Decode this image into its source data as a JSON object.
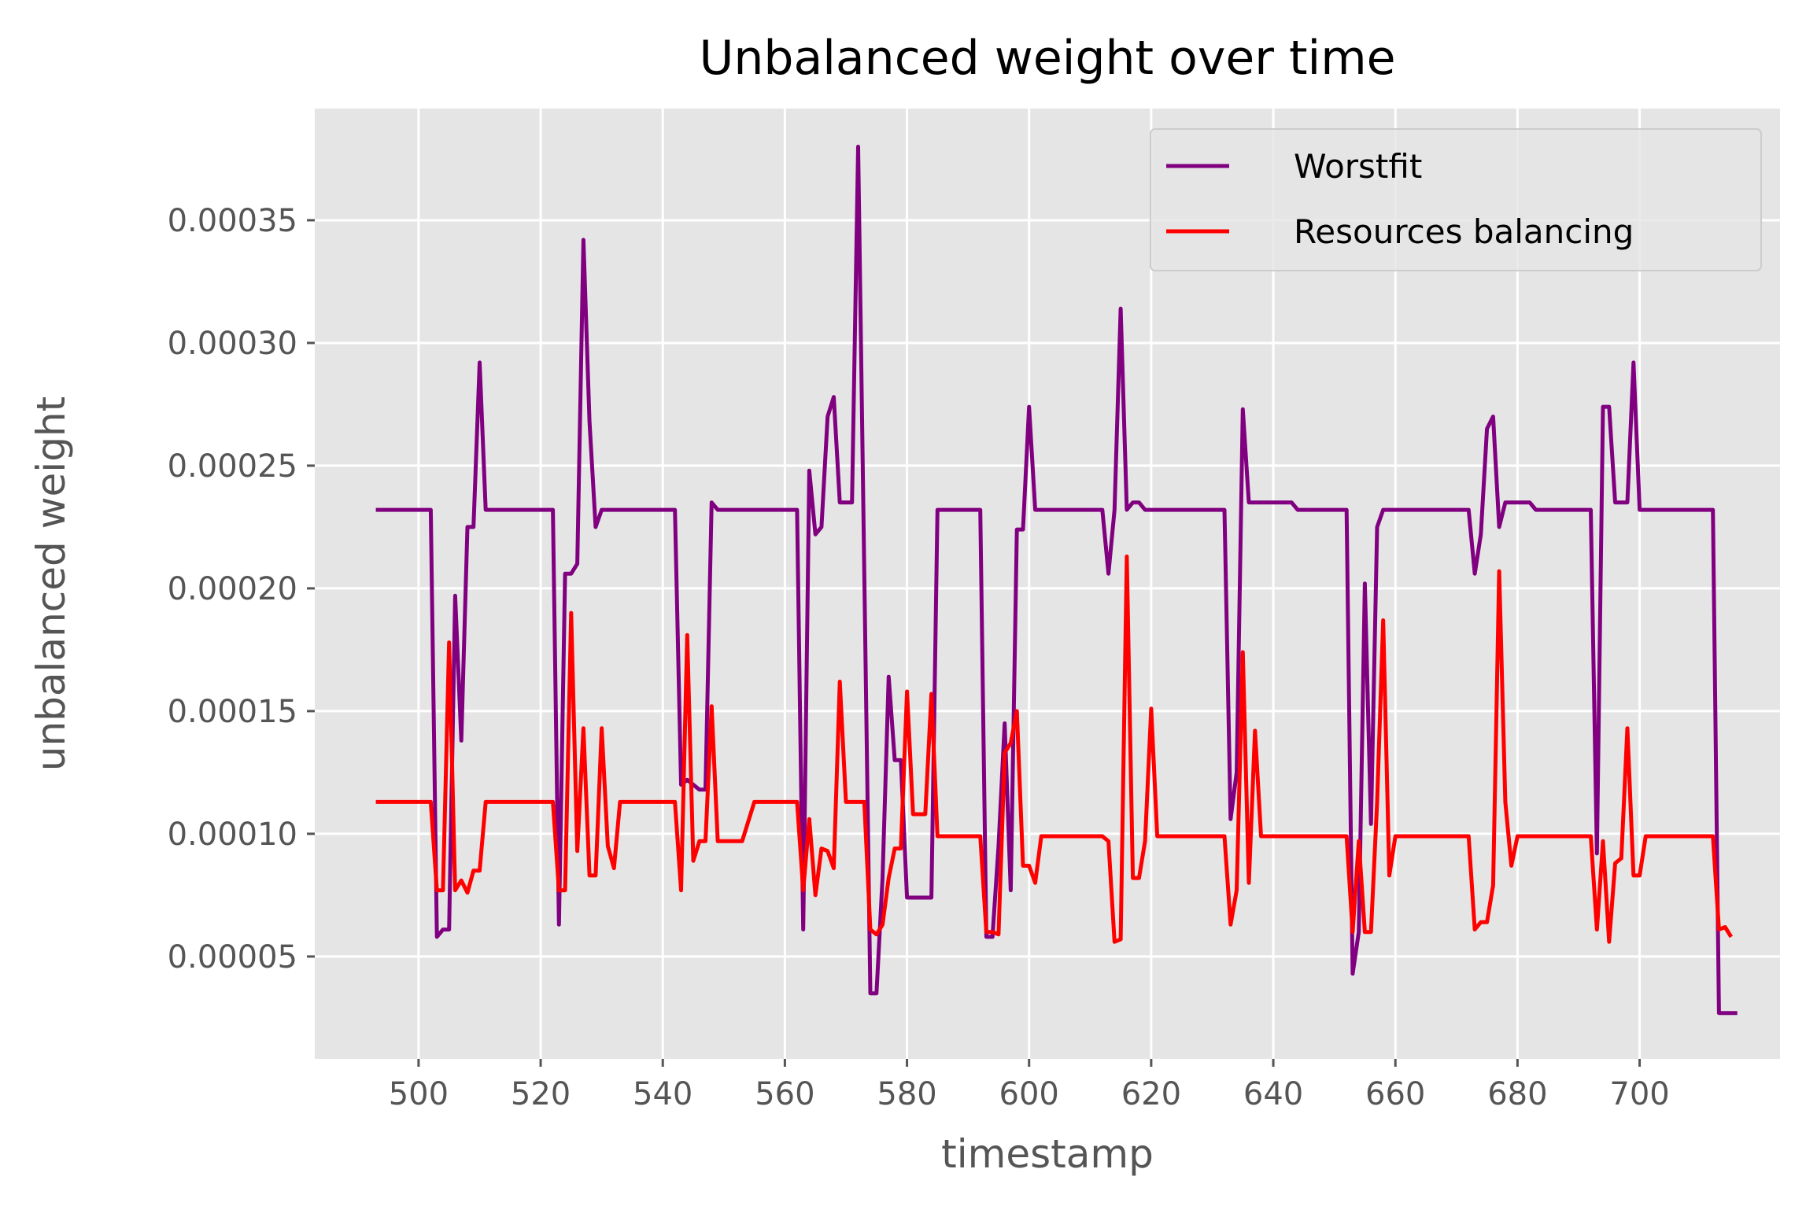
{
  "chart_data": {
    "type": "line",
    "title": "Unbalanced weight over time",
    "xlabel": "timestamp",
    "ylabel": "unbalanced weight",
    "xlim": [
      483,
      723
    ],
    "ylim": [
      8.3e-06,
      0.0003955
    ],
    "xticks": [
      500,
      520,
      540,
      560,
      580,
      600,
      620,
      640,
      660,
      680,
      700
    ],
    "xtick_labels": [
      "500",
      "520",
      "540",
      "560",
      "580",
      "600",
      "620",
      "640",
      "660",
      "680",
      "700"
    ],
    "yticks": [
      5e-05,
      0.0001,
      0.00015,
      0.0002,
      0.00025,
      0.0003,
      0.00035
    ],
    "ytick_labels": [
      "0.00005",
      "0.00010",
      "0.00015",
      "0.00020",
      "0.00025",
      "0.00030",
      "0.00035"
    ],
    "grid": true,
    "legend_position": "top-right",
    "style": {
      "plot_background": "#e5e5e5",
      "grid_color": "#ffffff"
    },
    "series": [
      {
        "name": "Worstfit",
        "color": "#800080",
        "points": [
          [
            493,
            0.000232
          ],
          [
            502,
            0.000232
          ],
          [
            503,
            5.8e-05
          ],
          [
            504,
            6.1e-05
          ],
          [
            505,
            6.1e-05
          ],
          [
            506,
            0.000197
          ],
          [
            507,
            0.000138
          ],
          [
            508,
            0.000225
          ],
          [
            509,
            0.000225
          ],
          [
            510,
            0.000292
          ],
          [
            511,
            0.000232
          ],
          [
            522,
            0.000232
          ],
          [
            523,
            6.3e-05
          ],
          [
            524,
            0.000206
          ],
          [
            525,
            0.000206
          ],
          [
            526,
            0.00021
          ],
          [
            527,
            0.000342
          ],
          [
            528,
            0.000268
          ],
          [
            529,
            0.000225
          ],
          [
            530,
            0.000232
          ],
          [
            542,
            0.000232
          ],
          [
            543,
            0.00012
          ],
          [
            544,
            0.000122
          ],
          [
            546,
            0.000118
          ],
          [
            547,
            0.000118
          ],
          [
            548,
            0.000235
          ],
          [
            549,
            0.000232
          ],
          [
            562,
            0.000232
          ],
          [
            563,
            6.1e-05
          ],
          [
            564,
            0.000248
          ],
          [
            565,
            0.000222
          ],
          [
            566,
            0.000225
          ],
          [
            567,
            0.00027
          ],
          [
            568,
            0.000278
          ],
          [
            569,
            0.000235
          ],
          [
            571,
            0.000235
          ],
          [
            572,
            0.00038
          ],
          [
            574,
            3.5e-05
          ],
          [
            575,
            3.5e-05
          ],
          [
            576,
            8.2e-05
          ],
          [
            577,
            0.000164
          ],
          [
            578,
            0.00013
          ],
          [
            579,
            0.00013
          ],
          [
            580,
            7.4e-05
          ],
          [
            584,
            7.4e-05
          ],
          [
            585,
            0.000232
          ],
          [
            592,
            0.000232
          ],
          [
            593,
            5.8e-05
          ],
          [
            594,
            5.8e-05
          ],
          [
            595,
            9.5e-05
          ],
          [
            596,
            0.000145
          ],
          [
            597,
            7.7e-05
          ],
          [
            598,
            0.000224
          ],
          [
            599,
            0.000224
          ],
          [
            600,
            0.000274
          ],
          [
            601,
            0.000232
          ],
          [
            612,
            0.000232
          ],
          [
            613,
            0.000206
          ],
          [
            614,
            0.000232
          ],
          [
            615,
            0.000314
          ],
          [
            616,
            0.000232
          ],
          [
            617,
            0.000235
          ],
          [
            618,
            0.000235
          ],
          [
            619,
            0.000232
          ],
          [
            632,
            0.000232
          ],
          [
            633,
            0.000106
          ],
          [
            634,
            0.000125
          ],
          [
            635,
            0.000273
          ],
          [
            636,
            0.000235
          ],
          [
            643,
            0.000235
          ],
          [
            644,
            0.000232
          ],
          [
            652,
            0.000232
          ],
          [
            653,
            4.3e-05
          ],
          [
            654,
            6e-05
          ],
          [
            655,
            0.000202
          ],
          [
            656,
            0.000104
          ],
          [
            657,
            0.000225
          ],
          [
            658,
            0.000232
          ],
          [
            672,
            0.000232
          ],
          [
            673,
            0.000206
          ],
          [
            674,
            0.000222
          ],
          [
            675,
            0.000265
          ],
          [
            676,
            0.00027
          ],
          [
            677,
            0.000225
          ],
          [
            678,
            0.000235
          ],
          [
            682,
            0.000235
          ],
          [
            683,
            0.000232
          ],
          [
            692,
            0.000232
          ],
          [
            693,
            9.2e-05
          ],
          [
            694,
            0.000274
          ],
          [
            695,
            0.000274
          ],
          [
            696,
            0.000235
          ],
          [
            698,
            0.000235
          ],
          [
            699,
            0.000292
          ],
          [
            700,
            0.000232
          ],
          [
            712,
            0.000232
          ],
          [
            713,
            2.7e-05
          ],
          [
            716,
            2.7e-05
          ]
        ]
      },
      {
        "name": "Resources balancing",
        "color": "#ff0000",
        "points": [
          [
            493,
            0.000113
          ],
          [
            502,
            0.000113
          ],
          [
            503,
            7.7e-05
          ],
          [
            504,
            7.7e-05
          ],
          [
            505,
            0.000178
          ],
          [
            506,
            7.7e-05
          ],
          [
            507,
            8.1e-05
          ],
          [
            508,
            7.6e-05
          ],
          [
            509,
            8.5e-05
          ],
          [
            510,
            8.5e-05
          ],
          [
            511,
            0.000113
          ],
          [
            522,
            0.000113
          ],
          [
            523,
            7.7e-05
          ],
          [
            524,
            7.7e-05
          ],
          [
            525,
            0.00019
          ],
          [
            526,
            9.3e-05
          ],
          [
            527,
            0.000143
          ],
          [
            528,
            8.3e-05
          ],
          [
            529,
            8.3e-05
          ],
          [
            530,
            0.000143
          ],
          [
            531,
            9.5e-05
          ],
          [
            532,
            8.6e-05
          ],
          [
            533,
            0.000113
          ],
          [
            542,
            0.000113
          ],
          [
            543,
            7.7e-05
          ],
          [
            544,
            0.000181
          ],
          [
            545,
            8.9e-05
          ],
          [
            546,
            9.7e-05
          ],
          [
            547,
            9.7e-05
          ],
          [
            548,
            0.000152
          ],
          [
            549,
            9.7e-05
          ],
          [
            553,
            9.7e-05
          ],
          [
            555,
            0.000113
          ],
          [
            562,
            0.000113
          ],
          [
            563,
            7.7e-05
          ],
          [
            564,
            0.000106
          ],
          [
            565,
            7.5e-05
          ],
          [
            566,
            9.4e-05
          ],
          [
            567,
            9.3e-05
          ],
          [
            568,
            8.6e-05
          ],
          [
            569,
            0.000162
          ],
          [
            570,
            0.000113
          ],
          [
            573,
            0.000113
          ],
          [
            574,
            6.1e-05
          ],
          [
            575,
            5.9e-05
          ],
          [
            576,
            6.3e-05
          ],
          [
            577,
            8.2e-05
          ],
          [
            578,
            9.4e-05
          ],
          [
            579,
            9.4e-05
          ],
          [
            580,
            0.000158
          ],
          [
            581,
            0.000108
          ],
          [
            583,
            0.000108
          ],
          [
            584,
            0.000157
          ],
          [
            585,
            9.9e-05
          ],
          [
            592,
            9.9e-05
          ],
          [
            593,
            6e-05
          ],
          [
            594,
            6e-05
          ],
          [
            595,
            5.9e-05
          ],
          [
            596,
            0.000133
          ],
          [
            597,
            0.000137
          ],
          [
            598,
            0.00015
          ],
          [
            599,
            8.7e-05
          ],
          [
            600,
            8.7e-05
          ],
          [
            601,
            8e-05
          ],
          [
            602,
            9.9e-05
          ],
          [
            612,
            9.9e-05
          ],
          [
            613,
            9.7e-05
          ],
          [
            614,
            5.6e-05
          ],
          [
            615,
            5.7e-05
          ],
          [
            616,
            0.000213
          ],
          [
            617,
            8.2e-05
          ],
          [
            618,
            8.2e-05
          ],
          [
            619,
            9.7e-05
          ],
          [
            620,
            0.000151
          ],
          [
            621,
            9.9e-05
          ],
          [
            632,
            9.9e-05
          ],
          [
            633,
            6.3e-05
          ],
          [
            634,
            7.7e-05
          ],
          [
            635,
            0.000174
          ],
          [
            636,
            8e-05
          ],
          [
            637,
            0.000142
          ],
          [
            638,
            9.9e-05
          ],
          [
            652,
            9.9e-05
          ],
          [
            653,
            6e-05
          ],
          [
            654,
            9.7e-05
          ],
          [
            655,
            6e-05
          ],
          [
            656,
            6e-05
          ],
          [
            657,
            0.000113
          ],
          [
            658,
            0.000187
          ],
          [
            659,
            8.3e-05
          ],
          [
            660,
            9.9e-05
          ],
          [
            672,
            9.9e-05
          ],
          [
            673,
            6.1e-05
          ],
          [
            674,
            6.4e-05
          ],
          [
            675,
            6.4e-05
          ],
          [
            676,
            7.9e-05
          ],
          [
            677,
            0.000207
          ],
          [
            678,
            0.000113
          ],
          [
            679,
            8.7e-05
          ],
          [
            680,
            9.9e-05
          ],
          [
            692,
            9.9e-05
          ],
          [
            693,
            6.1e-05
          ],
          [
            694,
            9.7e-05
          ],
          [
            695,
            5.6e-05
          ],
          [
            696,
            8.8e-05
          ],
          [
            697,
            9e-05
          ],
          [
            698,
            0.000143
          ],
          [
            699,
            8.3e-05
          ],
          [
            700,
            8.3e-05
          ],
          [
            701,
            9.9e-05
          ],
          [
            712,
            9.9e-05
          ],
          [
            713,
            6.1e-05
          ],
          [
            714,
            6.2e-05
          ],
          [
            715,
            5.8e-05
          ]
        ]
      }
    ]
  }
}
